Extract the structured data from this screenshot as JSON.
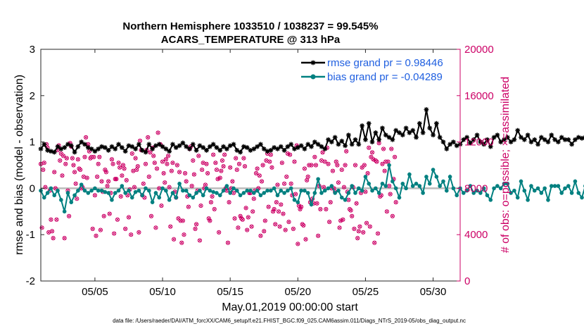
{
  "chart_data": {
    "type": "line",
    "title_line1": "Northern Hemisphere 1033510 / 1038237 = 99.545%",
    "title_line2": "ACARS_TEMPERATURE @ 313 hPa",
    "xlabel": "May.01,2019 00:00:00 start",
    "ylabel": "rmse and bias (model - observation)",
    "ylabel_right": "# of obs: o=possible; ×=assimilated",
    "xlim": [
      1,
      32
    ],
    "ylim": [
      -2,
      3
    ],
    "ylim_right": [
      0,
      20000
    ],
    "x_tick_values": [
      5,
      10,
      15,
      20,
      25,
      30
    ],
    "x_tick_labels": [
      "05/05",
      "05/10",
      "05/15",
      "05/20",
      "05/25",
      "05/30"
    ],
    "y_tick_values": [
      -2,
      -1,
      0,
      1,
      2,
      3
    ],
    "y_tick_labels": [
      "-2",
      "-1",
      "0",
      "1",
      "2",
      "3"
    ],
    "y_right_tick_values": [
      0,
      4000,
      8000,
      12000,
      16000,
      20000
    ],
    "y_right_tick_labels": [
      "0",
      "4000",
      "8000",
      "12000",
      "16000",
      "20000"
    ],
    "zero_line": 0,
    "legend_position": "top-right",
    "x_step_days": 0.25,
    "series": [
      {
        "name": "rmse",
        "legend": "rmse grand pr = 0.98446",
        "color": "#000000",
        "marker": "asterisk",
        "x_start": 1,
        "values": [
          0.85,
          0.95,
          0.82,
          0.8,
          0.78,
          0.9,
          0.85,
          0.88,
          0.95,
          0.92,
          0.78,
          0.9,
          1.0,
          0.95,
          0.88,
          0.85,
          0.8,
          0.85,
          0.9,
          0.88,
          0.82,
          0.9,
          0.85,
          0.95,
          0.88,
          0.8,
          0.92,
          0.9,
          0.85,
          0.95,
          0.82,
          0.78,
          0.95,
          0.85,
          0.92,
          0.95,
          0.9,
          0.85,
          0.8,
          0.95,
          0.88,
          0.92,
          0.98,
          0.9,
          0.85,
          0.95,
          0.82,
          0.92,
          0.88,
          0.82,
          0.9,
          0.95,
          0.88,
          0.82,
          0.9,
          0.85,
          0.92,
          0.95,
          0.82,
          0.78,
          0.9,
          0.88,
          0.82,
          0.85,
          0.9,
          0.95,
          0.85,
          0.8,
          0.82,
          0.88,
          0.85,
          0.9,
          0.82,
          0.9,
          0.95,
          0.85,
          0.88,
          0.92,
          0.85,
          0.95,
          0.9,
          1.0,
          0.95,
          0.9,
          0.85,
          1.05,
          1.0,
          1.1,
          0.95,
          1.02,
          0.92,
          1.15,
          0.95,
          1.05,
          0.95,
          1.35,
          1.05,
          1.4,
          1.0,
          1.2,
          1.05,
          1.3,
          1.15,
          1.1,
          1.05,
          1.25,
          1.2,
          1.15,
          1.3,
          1.2,
          1.25,
          1.1,
          1.4,
          1.2,
          1.7,
          1.3,
          1.15,
          1.4,
          1.1,
          1.0,
          0.85,
          0.95,
          1.0,
          0.92,
          0.95,
          1.05,
          1.1,
          0.98,
          1.05,
          1.15,
          1.0,
          0.95,
          1.05,
          0.9,
          1.1,
          1.15,
          1.0,
          1.05,
          1.1,
          1.0,
          1.05,
          1.25,
          1.1,
          1.05,
          1.15,
          1.0,
          1.05,
          0.95,
          1.1,
          1.05,
          1.0,
          1.15,
          1.05,
          1.0,
          1.1,
          1.05,
          1.05,
          0.95,
          1.05,
          1.1,
          1.08,
          1.1,
          0.95,
          0.9,
          0.92,
          0.95,
          0.88,
          0.85
        ]
      },
      {
        "name": "bias",
        "legend": "bias grand pr = -0.04289",
        "color": "#008080",
        "marker": "filled-circle",
        "x_start": 1,
        "values": [
          -0.05,
          -0.2,
          -0.1,
          0.0,
          -0.15,
          -0.05,
          -0.25,
          -0.5,
          -0.1,
          -0.3,
          -0.15,
          -0.05,
          0.08,
          -0.05,
          -0.1,
          -0.05,
          0.0,
          -0.05,
          -0.05,
          -0.08,
          -0.1,
          -0.25,
          -0.1,
          -0.05,
          0.05,
          -0.1,
          -0.05,
          -0.2,
          -0.08,
          -0.05,
          -0.15,
          0.0,
          -0.05,
          -0.3,
          -0.1,
          -0.2,
          0.0,
          -0.05,
          -0.25,
          -0.1,
          -0.2,
          0.1,
          -0.05,
          -0.05,
          -0.15,
          -0.2,
          -0.1,
          -0.05,
          -0.15,
          0.0,
          -0.05,
          -0.08,
          -0.1,
          -0.15,
          -0.05,
          0.05,
          -0.1,
          0.0,
          -0.05,
          -0.15,
          -0.1,
          -0.05,
          -0.05,
          -0.1,
          -0.05,
          -0.15,
          -0.1,
          -0.05,
          -0.05,
          0.0,
          -0.15,
          -0.05,
          -0.1,
          -0.05,
          0.0,
          -0.25,
          -0.3,
          -0.05,
          -0.05,
          -0.1,
          -0.35,
          -0.1,
          0.2,
          -0.1,
          -0.05,
          0.0,
          0.05,
          -0.1,
          -0.05,
          -0.2,
          -0.25,
          -0.1,
          0.05,
          -0.1,
          0.0,
          -0.05,
          0.25,
          0.1,
          -0.05,
          0.0,
          -0.1,
          0.1,
          0.05,
          0.5,
          0.15,
          0.0,
          -0.2,
          0.1,
          0.0,
          0.3,
          0.05,
          0.1,
          0.05,
          -0.1,
          0.25,
          0.1,
          0.4,
          0.25,
          0.05,
          0.15,
          -0.05,
          0.25,
          0.0,
          -0.15,
          0.0,
          -0.1,
          -0.05,
          0.05,
          -0.1,
          -0.05,
          -0.1,
          0.0,
          -0.15,
          -0.25,
          0.0,
          0.05,
          0.0,
          0.1,
          0.1,
          -0.1,
          -0.05,
          -0.2,
          0.15,
          -0.05,
          -0.25,
          0.05,
          -0.05,
          0.0,
          -0.1,
          0.0,
          -0.25,
          0.05,
          0.05,
          0.05,
          -0.1,
          0.0,
          0.05,
          -0.1,
          0.15,
          -0.1,
          -0.2,
          0.05,
          0.0,
          0.0,
          0.15,
          0.05,
          0.0,
          0.0
        ]
      },
      {
        "name": "possible",
        "color": "#cc0066",
        "axis": "right",
        "marker": "circle-x",
        "x_start": 1,
        "values": [
          10100,
          4600,
          9600,
          10200,
          8100,
          11800,
          11500,
          4200,
          7800,
          5300,
          4300,
          3700,
          9400,
          8000,
          5300,
          11300,
          11700,
          10400,
          11000,
          9100,
          10800,
          3700,
          10100,
          10600,
          7800,
          5600,
          11900,
          11600,
          10600,
          10000,
          9400,
          8400,
          7100,
          10500,
          9700,
          9600,
          8000,
          8100,
          9000,
          10700,
          12400,
          8900,
          11800,
          11200,
          10600,
          10700,
          4500,
          10700,
          7400,
          3900,
          9000,
          10100,
          10700,
          4400,
          8600,
          7700,
          5600,
          9600,
          9400,
          8200,
          8600,
          5800,
          7600,
          10500,
          10100,
          4100,
          8800,
          8800,
          5300,
          10200,
          9800,
          7300,
          9100,
          10000,
          9700,
          4500,
          8700,
          7400,
          5500,
          7900,
          4000,
          11000,
          9500,
          8100,
          10600,
          9600,
          9900,
          4200,
          12100,
          11300,
          7400,
          8400,
          7200,
          10100,
          11300,
          12400,
          9000,
          11100,
          5600,
          11500,
          10800,
          10200,
          4600,
          9700,
          12800,
          8000,
          11800,
          6500,
          10300,
          9300,
          8500,
          10500,
          10100,
          10800,
          8100,
          4700,
          9500,
          10200,
          3600,
          7700,
          7200,
          10000,
          5400,
          9400,
          5200,
          3300,
          5200,
          4000,
          9300,
          8600,
          7300,
          6400,
          11400,
          11600,
          8200,
          10400,
          9200,
          4500,
          4900,
          7800,
          10800,
          3500,
          6500,
          9600,
          10200,
          8000,
          8300,
          10100,
          9300,
          5400,
          5200,
          6800,
          7300,
          10900,
          6200,
          10200,
          9600,
          8800,
          4200,
          8900,
          9500,
          10400,
          9900,
          10900,
          8000,
          7800,
          3300,
          6800,
          9800,
          8000,
          8600,
          7600,
          5400,
          10600,
          9600,
          4600,
          10100,
          5600,
          5400,
          5300,
          10600,
          9900,
          6300,
          4400,
          5500,
          7600,
          7600,
          4700,
          6000,
          7100,
          7800,
          9300,
          9700,
          8000,
          9100,
          3900,
          8600,
          10000,
          4300,
          5200,
          10400,
          11000,
          6400,
          10300,
          10900,
          9800,
          6000,
          6200,
          4900,
          6800,
          8300,
          6000,
          4700,
          6600,
          10200,
          5800,
          8400,
          4400,
          9000,
          11000,
          5100,
          10900,
          8400,
          7400,
          4500,
          10300,
          7500,
          11700,
          3200,
          6500,
          6200,
          6400,
          4900,
          4800,
          9700,
          3600,
          8700,
          9000,
          10000,
          6800,
          10000,
          7100,
          6700,
          10700,
          10000,
          6700,
          3900,
          8200,
          6200,
          10400,
          11100,
          8100,
          10300,
          6200,
          11500,
          10100,
          5100,
          6800,
          8000,
          9500,
          8000,
          7700,
          10300,
          10000,
          8500,
          4600,
          5200,
          9600,
          5300,
          8100,
          10000,
          11200,
          7700,
          7000,
          6200,
          6100,
          5600,
          8100,
          4500,
          10000,
          6700,
          3700,
          4300,
          4700,
          7600,
          9800,
          4200,
          10000,
          7700,
          5000,
          9300,
          11500,
          4700,
          10700,
          11100,
          10500,
          3300,
          10400,
          10300,
          4100,
          11900,
          7300,
          7400,
          10100,
          11400,
          9500,
          10300,
          6000,
          10300,
          8200,
          7500,
          11400,
          5600,
          8800,
          10700,
          6800
        ]
      }
    ],
    "footer": "data file: /Users/raeder/DAI/ATM_forcXX/CAM6_setup/f.e21.FHIST_BGC.f09_025.CAM6assim.011/Diags_NTrS_2019-05/obs_diag_output.nc"
  }
}
